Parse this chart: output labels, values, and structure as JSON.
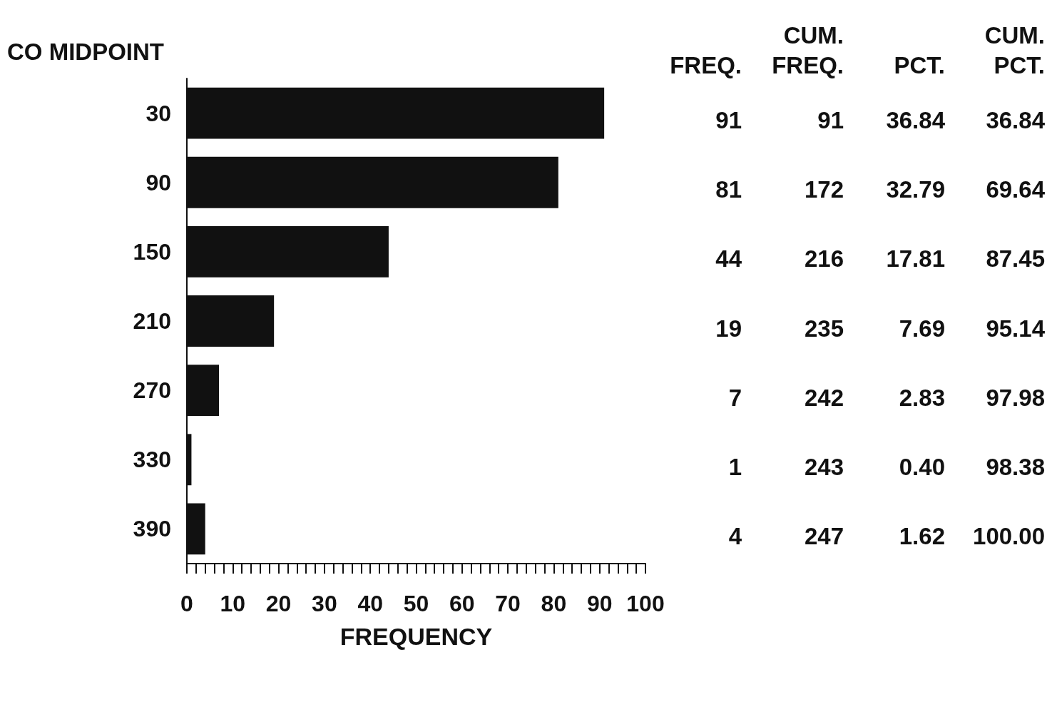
{
  "chart_data": {
    "type": "bar",
    "orientation": "horizontal",
    "ylabel": "CO MIDPOINT",
    "xlabel": "FREQUENCY",
    "categories": [
      "30",
      "90",
      "150",
      "210",
      "270",
      "330",
      "390"
    ],
    "values": [
      91,
      81,
      44,
      19,
      7,
      1,
      4
    ],
    "color": "#111111",
    "data_labels": true,
    "grid": false,
    "xlim": [
      0,
      100
    ],
    "xticks": [
      0,
      {
        "value": 2,
        "label": null
      },
      {
        "value": 4,
        "label": null
      },
      {
        "value": 6,
        "label": null
      },
      {
        "value": 8,
        "label": null
      },
      10,
      {
        "value": 12,
        "label": null
      },
      {
        "value": 14,
        "label": null
      },
      {
        "value": 16,
        "label": null
      },
      {
        "value": 18,
        "label": null
      },
      20,
      {
        "value": 22,
        "label": null
      },
      {
        "value": 24,
        "label": null
      },
      {
        "value": 26,
        "label": null
      },
      {
        "value": 28,
        "label": null
      },
      30,
      {
        "value": 32,
        "label": null
      },
      {
        "value": 34,
        "label": null
      },
      {
        "value": 36,
        "label": null
      },
      {
        "value": 38,
        "label": null
      },
      40,
      {
        "value": 42,
        "label": null
      },
      {
        "value": 44,
        "label": null
      },
      {
        "value": 46,
        "label": null
      },
      {
        "value": 48,
        "label": null
      },
      50,
      {
        "value": 52,
        "label": null
      },
      {
        "value": 54,
        "label": null
      },
      {
        "value": 56,
        "label": null
      },
      {
        "value": 58,
        "label": null
      },
      60,
      {
        "value": 62,
        "label": null
      },
      {
        "value": 64,
        "label": null
      },
      {
        "value": 66,
        "label": null
      },
      {
        "value": 68,
        "label": null
      },
      70,
      {
        "value": 72,
        "label": null
      },
      {
        "value": 74,
        "label": null
      },
      {
        "value": 76,
        "label": null
      },
      {
        "value": 78,
        "label": null
      },
      80,
      {
        "value": 82,
        "label": null
      },
      {
        "value": 84,
        "label": null
      },
      {
        "value": 86,
        "label": null
      },
      {
        "value": 88,
        "label": null
      },
      90,
      {
        "value": 92,
        "label": null
      },
      {
        "value": 94,
        "label": null
      },
      {
        "value": 96,
        "label": null
      },
      {
        "value": 98,
        "label": null
      },
      100
    ],
    "annotations": [
      "FREQ.",
      "CUM. FREQ.",
      "PCT.",
      "CUM. PCT.",
      "91",
      "36.84",
      "36.84",
      "172",
      "32.79",
      "69.64",
      "216",
      "17.81",
      "87.45",
      "235",
      "7.69",
      "95.14",
      "242",
      "2.83",
      "97.98",
      "243",
      "0.40",
      "98.38",
      "247",
      "1.62",
      "100.00"
    ]
  }
}
